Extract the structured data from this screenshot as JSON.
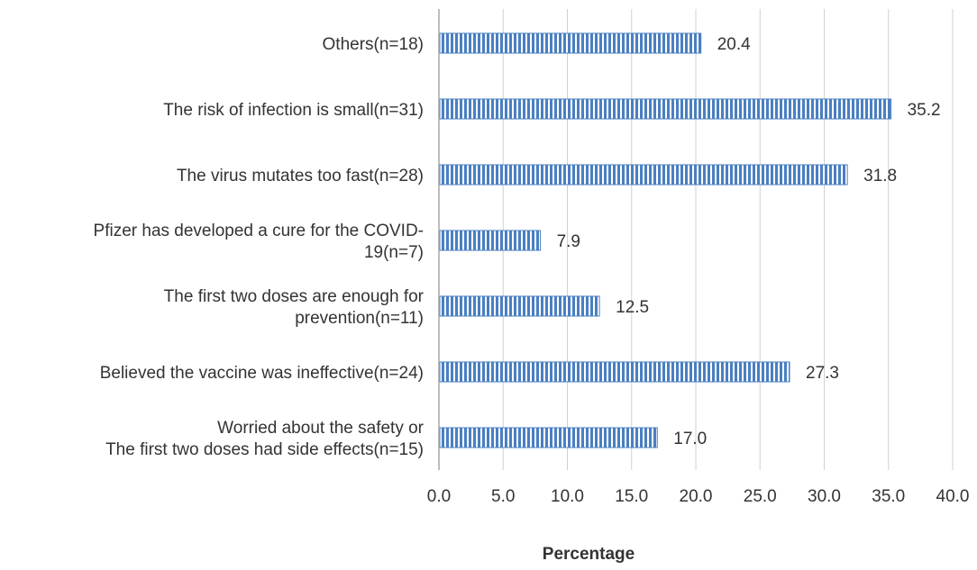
{
  "chart_data": {
    "type": "bar",
    "orientation": "horizontal",
    "categories": [
      [
        "Others(n=18)"
      ],
      [
        "The risk of infection is small(n=31)"
      ],
      [
        "The virus mutates too fast(n=28)"
      ],
      [
        "Pfizer has developed a cure for the COVID-",
        "19(n=7)"
      ],
      [
        "The first two doses are enough for",
        "prevention(n=11)"
      ],
      [
        "Believed  the vaccine was ineffective(n=24)"
      ],
      [
        "Worried about the safety or",
        "The first two doses had side effects(n=15)"
      ]
    ],
    "values": [
      20.4,
      35.2,
      31.8,
      7.9,
      12.5,
      27.3,
      17.0
    ],
    "data_labels": [
      "20.4",
      "35.2",
      "31.8",
      "7.9",
      "12.5",
      "27.3",
      "17.0"
    ],
    "xlabel": "Percentage",
    "ylabel": "",
    "xlim": [
      0,
      40
    ],
    "x_ticks": [
      "0.0",
      "5.0",
      "10.0",
      "15.0",
      "20.0",
      "25.0",
      "30.0",
      "35.0",
      "40.0"
    ],
    "grid": true,
    "bar_color": "#4a7fc1",
    "bar_stripe_color": "#ffffff",
    "grid_color": "#d0d0d0"
  }
}
